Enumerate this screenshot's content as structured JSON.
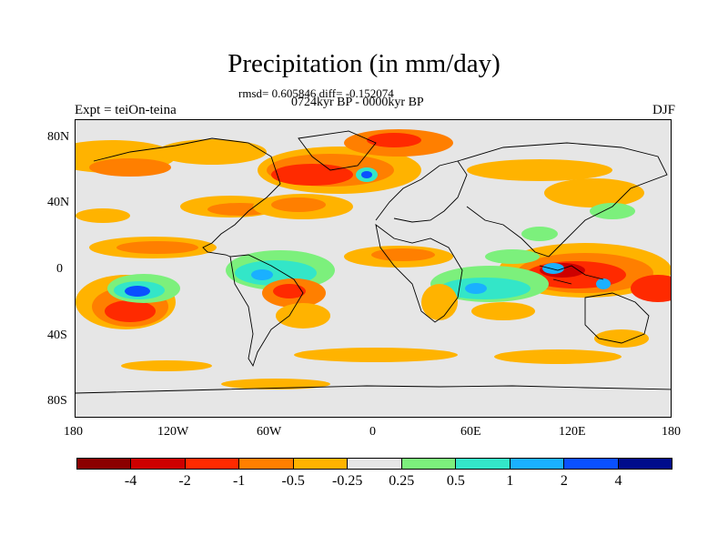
{
  "title": "Precipitation (in mm/day)",
  "stats": "rmsd= 0.605846 diff= -0.152074",
  "period": "0724kyr BP - 0000kyr BP",
  "experiment": "Expt = teiOn-teina",
  "season": "DJF",
  "y_ticks": [
    "80N",
    "40N",
    "0",
    "40S",
    "80S"
  ],
  "x_ticks": [
    "180",
    "120W",
    "60W",
    "0",
    "60E",
    "120E",
    "180"
  ],
  "colorbar": {
    "labels": [
      "-4",
      "-2",
      "-1",
      "-0.5",
      "-0.25",
      "0.25",
      "0.5",
      "1",
      "2",
      "4"
    ],
    "colors": [
      "#8b0000",
      "#cd0000",
      "#ff2a00",
      "#ff7f00",
      "#ffb300",
      "#e6e6e6",
      "#7cf07c",
      "#33e6c8",
      "#1ab0ff",
      "#0a50ff",
      "#000c8b"
    ]
  }
}
